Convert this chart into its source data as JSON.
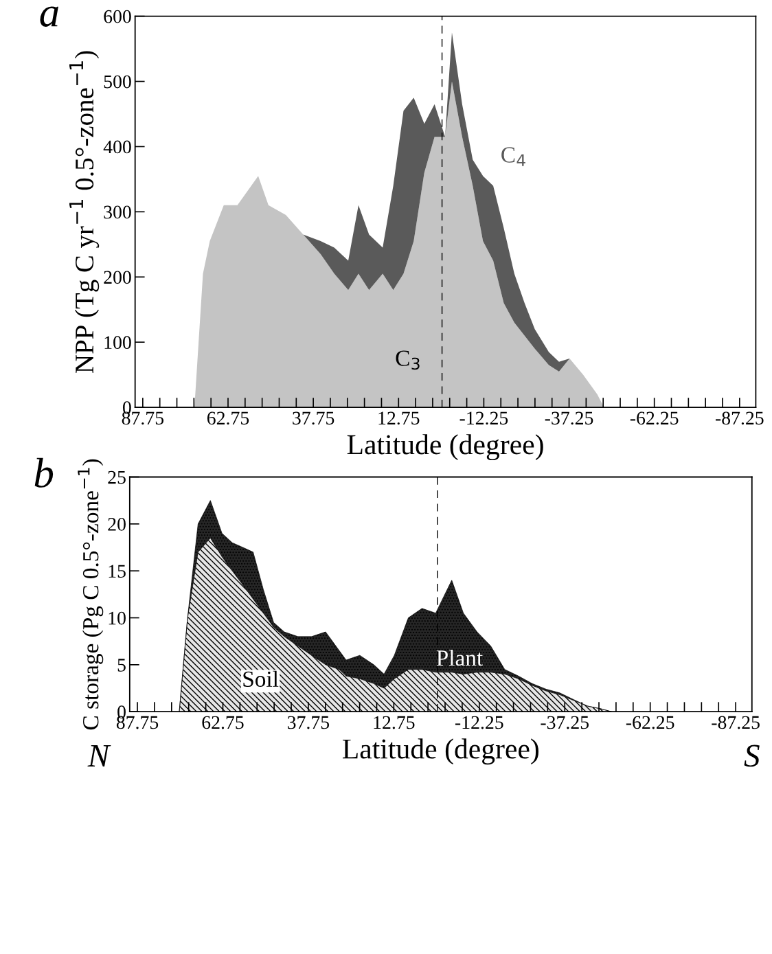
{
  "chart_data": [
    {
      "type": "area",
      "stacked": true,
      "title": "a",
      "xlabel": "Latitude (degree)",
      "ylabel": "NPP (Tg C yr$^{−1}$ 0.5°-zone$^{−1}$)",
      "x": [
        72.6,
        70.1,
        68.1,
        64,
        60,
        53.9,
        50.9,
        45.8,
        40.7,
        35.6,
        31.6,
        27.5,
        24.5,
        21.4,
        17.4,
        14.3,
        11.3,
        8.3,
        5.2,
        2.2,
        -0.9,
        -2.9,
        -5.9,
        -9,
        -12,
        -15,
        -18.1,
        -21.2,
        -24.2,
        -27.2,
        -31.3,
        -34.3,
        -37.4,
        -41.4,
        -45.5,
        -47.5
      ],
      "series": [
        {
          "name": "C$_{3}$",
          "color": "#c4c4c4",
          "values": [
            0,
            205,
            255,
            310,
            310,
            355,
            310,
            295,
            265,
            235,
            205,
            180,
            205,
            180,
            205,
            180,
            205,
            255,
            360,
            415,
            415,
            500,
            415,
            340,
            255,
            225,
            160,
            130,
            110,
            90,
            65,
            55,
            75,
            50,
            20,
            0
          ]
        },
        {
          "name": "C$_{4}$",
          "color": "#5a5a5a",
          "values": [
            0,
            0,
            0,
            0,
            0,
            0,
            0,
            0,
            0,
            20,
            40,
            45,
            105,
            85,
            40,
            160,
            250,
            220,
            75,
            50,
            0,
            75,
            50,
            40,
            100,
            115,
            115,
            75,
            50,
            30,
            20,
            15,
            0,
            0,
            0,
            0
          ]
        }
      ],
      "xlim": [
        90,
        -92
      ],
      "ylim": [
        0,
        600
      ],
      "xticks": [
        87.75,
        {
          "value": 82.75,
          "label": null
        },
        {
          "value": 77.75,
          "label": null
        },
        {
          "value": 72.75,
          "label": null
        },
        {
          "value": 67.75,
          "label": null
        },
        62.75,
        {
          "value": 57.75,
          "label": null
        },
        {
          "value": 52.75,
          "label": null
        },
        {
          "value": 47.75,
          "label": null
        },
        {
          "value": 42.75,
          "label": null
        },
        37.75,
        {
          "value": 32.75,
          "label": null
        },
        {
          "value": 27.75,
          "label": null
        },
        {
          "value": 22.75,
          "label": null
        },
        {
          "value": 17.75,
          "label": null
        },
        12.75,
        {
          "value": 7.75,
          "label": null
        },
        {
          "value": 2.75,
          "label": null
        },
        {
          "value": -2.25,
          "label": null
        },
        {
          "value": -7.25,
          "label": null
        },
        -12.25,
        {
          "value": -17.25,
          "label": null
        },
        {
          "value": -22.25,
          "label": null
        },
        {
          "value": -27.25,
          "label": null
        },
        {
          "value": -32.25,
          "label": null
        },
        -37.25,
        {
          "value": -42.25,
          "label": null
        },
        {
          "value": -47.25,
          "label": null
        },
        {
          "value": -52.25,
          "label": null
        },
        {
          "value": -57.25,
          "label": null
        },
        -62.25,
        {
          "value": -67.25,
          "label": null
        },
        {
          "value": -72.25,
          "label": null
        },
        {
          "value": -77.25,
          "label": null
        },
        {
          "value": -82.25,
          "label": null
        },
        -87.25
      ],
      "yticks": [
        0,
        100,
        200,
        300,
        400,
        500,
        600
      ],
      "ref_lines": [
        {
          "axis": "x",
          "value": 0,
          "label": null,
          "color": "#000000",
          "line_style": "dashed"
        }
      ],
      "grid": false,
      "legend": false
    },
    {
      "type": "area",
      "stacked": true,
      "title": "b",
      "xlabel": "Latitude (degree)",
      "ylabel": "C storage (Pg C 0.5°-zone$^{−1}$)",
      "x": [
        75.5,
        73.1,
        70.0,
        66.4,
        63.0,
        60.0,
        56.9,
        53.9,
        50.9,
        47.9,
        44.8,
        40.8,
        36.8,
        32.7,
        28.7,
        26.7,
        22.7,
        18.6,
        15.6,
        12.6,
        8.5,
        4.5,
        0.5,
        -4.2,
        -7.6,
        -11.6,
        -15.6,
        -19.7,
        -23.7,
        -27.7,
        -31.8,
        -35.8,
        -39.8,
        -43.9,
        -47.9,
        -50.9
      ],
      "series": [
        {
          "name": "Soil",
          "color": "#e6e6e6",
          "values": [
            0,
            9.9,
            17,
            18.5,
            16.5,
            15,
            13.5,
            12,
            10.5,
            9,
            8,
            7,
            6,
            5,
            4.5,
            3.8,
            3.5,
            3,
            2.5,
            3.5,
            4.5,
            4.5,
            4.2,
            4.2,
            4,
            4.2,
            4.2,
            4,
            3.5,
            2.8,
            2.2,
            1.8,
            1.2,
            0.6,
            0.3,
            0
          ]
        },
        {
          "name": "Plant",
          "color": "#262626",
          "values": [
            0,
            0,
            3,
            4,
            2.5,
            3,
            4,
            5,
            2.5,
            0.5,
            0.5,
            1,
            2,
            3.5,
            2,
            1.7,
            2.5,
            2,
            1.5,
            2.5,
            5.5,
            6.5,
            6.3,
            9.8,
            6.5,
            4.3,
            2.8,
            0.5,
            0.3,
            0.2,
            0.2,
            0.2,
            0.1,
            0,
            0,
            0
          ]
        }
      ],
      "xlim": [
        90,
        -92
      ],
      "ylim": [
        0,
        25
      ],
      "xticks": [
        87.75,
        {
          "value": 82.75,
          "label": null
        },
        {
          "value": 77.75,
          "label": null
        },
        {
          "value": 72.75,
          "label": null
        },
        {
          "value": 67.75,
          "label": null
        },
        62.75,
        {
          "value": 57.75,
          "label": null
        },
        {
          "value": 52.75,
          "label": null
        },
        {
          "value": 47.75,
          "label": null
        },
        {
          "value": 42.75,
          "label": null
        },
        37.75,
        {
          "value": 32.75,
          "label": null
        },
        {
          "value": 27.75,
          "label": null
        },
        {
          "value": 22.75,
          "label": null
        },
        {
          "value": 17.75,
          "label": null
        },
        12.75,
        {
          "value": 7.75,
          "label": null
        },
        {
          "value": 2.75,
          "label": null
        },
        {
          "value": -2.25,
          "label": null
        },
        {
          "value": -7.25,
          "label": null
        },
        -12.25,
        {
          "value": -17.25,
          "label": null
        },
        {
          "value": -22.25,
          "label": null
        },
        {
          "value": -27.25,
          "label": null
        },
        {
          "value": -32.25,
          "label": null
        },
        -37.25,
        {
          "value": -42.25,
          "label": null
        },
        {
          "value": -47.25,
          "label": null
        },
        {
          "value": -52.25,
          "label": null
        },
        {
          "value": -57.25,
          "label": null
        },
        -62.25,
        {
          "value": -67.25,
          "label": null
        },
        {
          "value": -72.25,
          "label": null
        },
        {
          "value": -77.25,
          "label": null
        },
        {
          "value": -82.25,
          "label": null
        },
        -87.25
      ],
      "yticks": [
        0,
        5,
        10,
        15,
        20,
        25
      ],
      "ref_lines": [
        {
          "axis": "x",
          "value": 0,
          "label": null,
          "color": "#000000",
          "line_style": "dashed"
        }
      ],
      "annotations": [
        "N",
        "S"
      ],
      "grid": false,
      "legend": false
    }
  ]
}
